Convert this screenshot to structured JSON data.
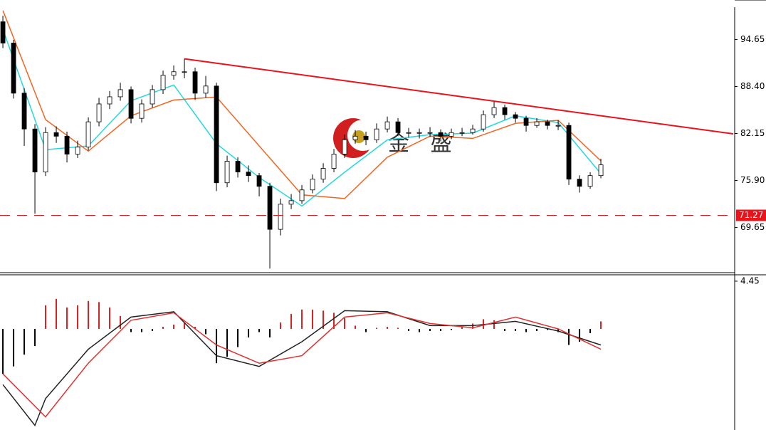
{
  "chart_data": [
    {
      "type": "candlestick",
      "watermark": "金 盛",
      "xlim": [
        -0.27,
        68.53
      ],
      "ylim": [
        63.65,
        98.95
      ],
      "yticks": [
        94.65,
        {
          "value": 88.4,
          "label": "88.40"
        },
        82.15,
        {
          "value": 75.9,
          "label": "75.90"
        },
        69.65
      ],
      "up_color": "#ffffff",
      "down_color": "#000000",
      "open": [
        97.0,
        94.17,
        87.51,
        82.75,
        77.03,
        82.27,
        81.79,
        79.41,
        80.36,
        83.7,
        86.08,
        87.03,
        87.98,
        84.17,
        86.08,
        87.98,
        89.89,
        90.36,
        90.36,
        87.51,
        88.46,
        75.6,
        78.46,
        77.03,
        76.55,
        75.13,
        69.41,
        72.75,
        73.22,
        74.65,
        76.08,
        77.51,
        79.41,
        81.32,
        81.79,
        81.32,
        82.75,
        83.7,
        82.27,
        82.27,
        82.27,
        82.27,
        81.79,
        82.27,
        82.27,
        82.75,
        84.65,
        85.6,
        84.65,
        84.17,
        83.22,
        83.7,
        83.22,
        83.22,
        76.08,
        75.13,
        76.55
      ],
      "high": [
        97.8,
        94.6,
        88.2,
        83.4,
        83.0,
        83.1,
        82.4,
        81.2,
        84.3,
        86.9,
        87.8,
        88.9,
        88.4,
        86.7,
        88.6,
        90.5,
        91.2,
        92.1,
        90.9,
        89.8,
        88.9,
        79.2,
        79.0,
        77.9,
        76.9,
        75.6,
        73.5,
        74.1,
        75.3,
        76.7,
        78.2,
        80.1,
        82.0,
        82.6,
        82.4,
        83.5,
        84.4,
        84.2,
        82.9,
        82.8,
        83.0,
        82.7,
        82.8,
        82.9,
        83.3,
        85.2,
        86.4,
        86.0,
        85.0,
        84.5,
        84.2,
        84.0,
        83.9,
        83.6,
        76.6,
        77.0,
        78.8
      ],
      "low": [
        93.5,
        86.8,
        80.5,
        71.5,
        76.5,
        80.9,
        78.3,
        78.9,
        79.9,
        83.1,
        85.4,
        86.5,
        83.5,
        83.6,
        85.6,
        87.4,
        89.3,
        89.5,
        86.6,
        86.9,
        74.5,
        75.0,
        76.3,
        75.7,
        73.8,
        64.2,
        68.6,
        72.1,
        72.8,
        74.2,
        75.6,
        77.0,
        78.9,
        80.8,
        80.6,
        80.9,
        82.3,
        81.8,
        81.6,
        81.5,
        81.7,
        81.1,
        81.4,
        81.8,
        82.0,
        82.4,
        84.2,
        84.0,
        83.6,
        82.4,
        82.9,
        82.7,
        82.6,
        75.3,
        74.3,
        74.8,
        76.2
      ],
      "close": [
        94.17,
        87.51,
        82.75,
        77.03,
        82.27,
        81.79,
        79.41,
        80.36,
        83.7,
        86.08,
        87.03,
        87.98,
        84.17,
        86.08,
        87.98,
        89.89,
        90.36,
        90.36,
        87.51,
        88.46,
        75.6,
        78.46,
        77.03,
        76.55,
        75.13,
        69.41,
        72.75,
        73.22,
        74.65,
        76.08,
        77.51,
        79.41,
        81.32,
        81.79,
        81.32,
        82.75,
        83.7,
        82.27,
        82.27,
        82.27,
        82.27,
        81.79,
        82.27,
        82.27,
        82.75,
        84.65,
        85.6,
        84.65,
        84.17,
        83.22,
        83.7,
        83.22,
        83.22,
        76.08,
        75.13,
        76.55,
        77.98
      ],
      "series": [
        {
          "color": "#22d8e0",
          "x": [
            0,
            4,
            8,
            12,
            16,
            20,
            24,
            28,
            32,
            36,
            40,
            44,
            48,
            52,
            56
          ],
          "values": [
            96.0,
            80.0,
            80.5,
            86.5,
            88.6,
            80.8,
            76.3,
            72.5,
            77.0,
            81.3,
            82.0,
            82.2,
            84.5,
            83.6,
            76.8
          ]
        },
        {
          "color": "#f26522",
          "x": [
            0,
            4,
            8,
            12,
            16,
            20,
            24,
            28,
            32,
            36,
            40,
            44,
            48,
            52,
            56
          ],
          "values": [
            98.5,
            84.0,
            79.8,
            84.5,
            86.6,
            87.0,
            80.5,
            74.0,
            73.5,
            79.0,
            81.8,
            81.5,
            83.5,
            83.9,
            78.5
          ]
        }
      ],
      "trendline": {
        "color": "#e8141c",
        "x": [
          17,
          68.4
        ],
        "y": [
          92.08,
          82.1
        ]
      },
      "hline": {
        "color": "#e8141c",
        "value": 71.27
      }
    },
    {
      "type": "macd",
      "xlim": [
        -0.27,
        68.53
      ],
      "ylim": [
        -9.43,
        4.91
      ],
      "yticks": [
        4.45
      ],
      "histogram": {
        "up_color": "#d42020",
        "down_color": "#000000",
        "values": [
          -4.2,
          -3.5,
          -2.4,
          -1.6,
          2.2,
          2.8,
          2.0,
          2.2,
          2.6,
          2.5,
          2.0,
          1.2,
          -0.3,
          -0.3,
          -0.2,
          0.2,
          0.4,
          0.6,
          0.2,
          -0.5,
          -3.2,
          -2.6,
          -1.7,
          -0.8,
          -0.3,
          -0.8,
          0.6,
          1.4,
          1.8,
          1.8,
          1.7,
          1.5,
          1.0,
          0.3,
          -0.3,
          0.1,
          0.2,
          0.1,
          -0.2,
          -0.3,
          -0.2,
          -0.2,
          -0.1,
          0.2,
          0.5,
          0.9,
          0.8,
          -0.2,
          -0.2,
          -0.3,
          -0.2,
          -0.1,
          -0.3,
          -1.5,
          -1.2,
          -0.4,
          0.7
        ]
      },
      "series": [
        {
          "color": "#222222",
          "x": [
            0,
            3,
            4,
            8,
            12,
            16,
            20,
            24,
            28,
            32,
            36,
            40,
            44,
            48,
            52,
            56
          ],
          "values": [
            -5.2,
            -9.0,
            -6.5,
            -1.9,
            1.1,
            1.6,
            -2.5,
            -3.5,
            -1.2,
            1.7,
            1.6,
            0.3,
            0.3,
            0.7,
            -0.2,
            -1.5
          ]
        },
        {
          "color": "#e03030",
          "x": [
            0,
            4,
            8,
            12,
            16,
            20,
            24,
            28,
            32,
            36,
            40,
            44,
            48,
            52,
            56
          ],
          "values": [
            -4.2,
            -8.2,
            -3.2,
            0.8,
            1.5,
            -1.5,
            -3.2,
            -2.5,
            1.1,
            1.5,
            0.5,
            0.1,
            1.1,
            0.0,
            -1.9
          ]
        }
      ]
    }
  ]
}
